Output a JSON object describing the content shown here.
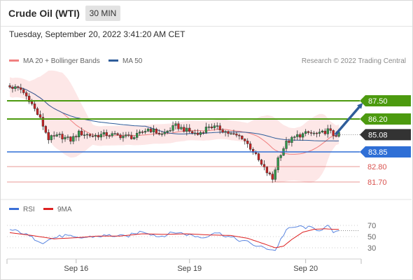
{
  "header": {
    "title": "Crude Oil (WTI)",
    "timeframe": "30 MIN"
  },
  "datetime": "Tuesday, September 20, 2022 3:41:20 AM CET",
  "legend": {
    "ma20_label": "MA 20 + Bollinger Bands",
    "ma50_label": "MA 50",
    "ma20_color": "#f08080",
    "ma50_color": "#2f5d9a",
    "copyright": "Research © 2022 Trading Central"
  },
  "colors": {
    "resistance": "#4c9a0f",
    "support": "#2f6fd6",
    "target": "#d9534f",
    "price_box": "#333333",
    "arrow": "#2f5d9a",
    "band_fill": "#fde3e3",
    "up_candle": "#2e9a4a",
    "down_candle": "#cc2222"
  },
  "chart_data": [
    {
      "type": "candlestick",
      "ylim": [
        80.7,
        89.2
      ],
      "x_tick_labels": [
        "Sep 16",
        "Sep 19",
        "Sep 20"
      ],
      "x_tick_index": [
        24,
        65,
        107
      ],
      "candle_count": 120,
      "close_path": [
        [
          0,
          88.5
        ],
        [
          4,
          88.3
        ],
        [
          7,
          87.6
        ],
        [
          11,
          86.2
        ],
        [
          14,
          84.8
        ],
        [
          18,
          85.0
        ],
        [
          22,
          84.7
        ],
        [
          25,
          85.2
        ],
        [
          30,
          85.0
        ],
        [
          35,
          85.1
        ],
        [
          40,
          85.0
        ],
        [
          45,
          84.9
        ],
        [
          50,
          85.5
        ],
        [
          55,
          85.1
        ],
        [
          60,
          85.7
        ],
        [
          65,
          85.3
        ],
        [
          68,
          85.1
        ],
        [
          72,
          85.7
        ],
        [
          76,
          85.5
        ],
        [
          80,
          85.1
        ],
        [
          84,
          84.9
        ],
        [
          88,
          83.9
        ],
        [
          91,
          82.9
        ],
        [
          93,
          82.4
        ],
        [
          95,
          81.9
        ],
        [
          97,
          83.4
        ],
        [
          100,
          84.5
        ],
        [
          104,
          85.0
        ],
        [
          108,
          85.2
        ],
        [
          112,
          85.1
        ],
        [
          115,
          85.4
        ],
        [
          117,
          85.08
        ]
      ],
      "levels": [
        {
          "value": 87.5,
          "label": "87.50",
          "kind": "resistance"
        },
        {
          "value": 86.2,
          "label": "86.20",
          "kind": "resistance"
        },
        {
          "value": 85.08,
          "label": "85.08",
          "kind": "last_price"
        },
        {
          "value": 83.85,
          "label": "83.85",
          "kind": "support"
        },
        {
          "value": 82.8,
          "label": "82.80",
          "kind": "target"
        },
        {
          "value": 81.7,
          "label": "81.70",
          "kind": "target"
        }
      ],
      "series": [
        {
          "name": "MA 20 + Bollinger Bands"
        },
        {
          "name": "MA 50"
        }
      ],
      "scenario_arrow": {
        "from": [
          117,
          85.08
        ],
        "to": [
          127,
          87.5
        ]
      }
    },
    {
      "type": "line",
      "ylim": [
        15,
        85
      ],
      "y_ticks": [
        70,
        50,
        30
      ],
      "series_names": [
        "RSI",
        "9MA"
      ],
      "rsi_path": [
        [
          0,
          62
        ],
        [
          4,
          58
        ],
        [
          8,
          48
        ],
        [
          12,
          40
        ],
        [
          16,
          48
        ],
        [
          20,
          52
        ],
        [
          24,
          47
        ],
        [
          30,
          50
        ],
        [
          36,
          52
        ],
        [
          42,
          50
        ],
        [
          48,
          60
        ],
        [
          54,
          50
        ],
        [
          60,
          58
        ],
        [
          66,
          52
        ],
        [
          70,
          48
        ],
        [
          74,
          58
        ],
        [
          78,
          52
        ],
        [
          82,
          45
        ],
        [
          86,
          40
        ],
        [
          90,
          32
        ],
        [
          94,
          28
        ],
        [
          96,
          25
        ],
        [
          98,
          45
        ],
        [
          100,
          62
        ],
        [
          104,
          68
        ],
        [
          108,
          66
        ],
        [
          112,
          62
        ],
        [
          115,
          68
        ],
        [
          117,
          58
        ]
      ],
      "ma9_path": [
        [
          0,
          57
        ],
        [
          8,
          52
        ],
        [
          16,
          46
        ],
        [
          24,
          48
        ],
        [
          32,
          51
        ],
        [
          40,
          51
        ],
        [
          48,
          55
        ],
        [
          56,
          54
        ],
        [
          64,
          55
        ],
        [
          72,
          53
        ],
        [
          80,
          52
        ],
        [
          86,
          47
        ],
        [
          92,
          37
        ],
        [
          96,
          30
        ],
        [
          99,
          33
        ],
        [
          102,
          45
        ],
        [
          106,
          58
        ],
        [
          110,
          63
        ],
        [
          114,
          64
        ],
        [
          117,
          63
        ]
      ]
    }
  ]
}
